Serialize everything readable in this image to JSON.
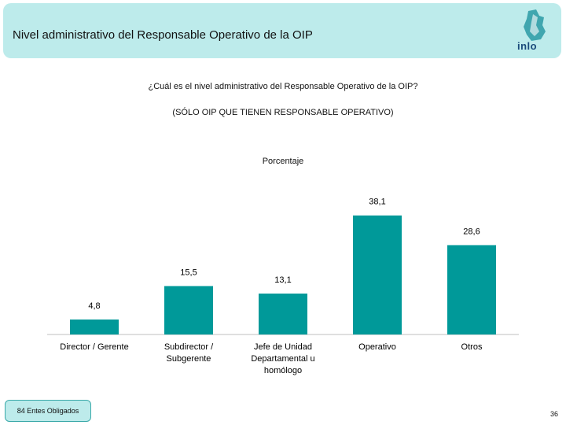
{
  "header": {
    "title": "Nivel administrativo del Responsable Operativo de la OIP",
    "logo_text": "inlo"
  },
  "question": "¿Cuál es el nivel administrativo del Responsable Operativo de la OIP?",
  "subquestion": "(SÓLO OIP QUE TIENEN RESPONSABLE OPERATIVO)",
  "footer": {
    "badge": "84 Entes Obligados",
    "page_number": "36"
  },
  "colors": {
    "bar": "#009999",
    "header_bg": "#bdebeb"
  },
  "chart_data": {
    "type": "bar",
    "title": "Porcentaje",
    "categories": [
      [
        "Director / Gerente"
      ],
      [
        "Subdirector /",
        "Subgerente"
      ],
      [
        "Jefe de Unidad",
        "Departamental u",
        "homólogo"
      ],
      [
        "Operativo"
      ],
      [
        "Otros"
      ]
    ],
    "values": [
      4.8,
      15.5,
      13.1,
      38.1,
      28.6
    ],
    "value_labels": [
      "4,8",
      "15,5",
      "13,1",
      "38,1",
      "28,6"
    ],
    "ylim": [
      0,
      40
    ],
    "grid": false,
    "legend": "none"
  }
}
